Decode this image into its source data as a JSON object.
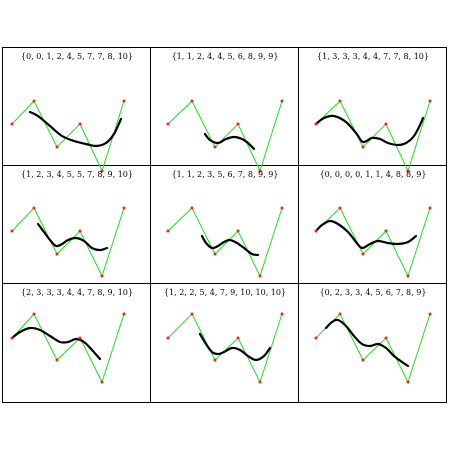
{
  "panels": [
    {
      "title": "{0, 0, 1, 2, 4, 5, 7, 7, 8, 10}",
      "control_points": [
        [
          8,
          76
        ],
        [
          30,
          53
        ],
        [
          53,
          99
        ],
        [
          76,
          76
        ],
        [
          98,
          123
        ],
        [
          120,
          53
        ]
      ],
      "curve": [
        [
          26,
          64
        ],
        [
          34,
          68
        ],
        [
          46,
          78
        ],
        [
          58,
          88
        ],
        [
          70,
          93
        ],
        [
          82,
          96
        ],
        [
          92,
          98
        ],
        [
          102,
          95
        ],
        [
          110,
          86
        ],
        [
          117,
          71
        ]
      ]
    },
    {
      "title": "{1, 1, 2, 4, 4, 5, 6, 8, 9, 9}",
      "control_points": [
        [
          16,
          76
        ],
        [
          40,
          53
        ],
        [
          63,
          99
        ],
        [
          86,
          76
        ],
        [
          108,
          123
        ],
        [
          130,
          53
        ]
      ],
      "curve": [
        [
          53,
          86
        ],
        [
          58,
          92
        ],
        [
          66,
          95
        ],
        [
          74,
          91
        ],
        [
          82,
          89
        ],
        [
          90,
          91
        ],
        [
          96,
          95
        ],
        [
          102,
          101
        ]
      ]
    },
    {
      "title": "{1, 3, 3, 3, 4, 4, 7, 7, 8, 10}",
      "control_points": [
        [
          16,
          76
        ],
        [
          40,
          53
        ],
        [
          63,
          99
        ],
        [
          86,
          76
        ],
        [
          108,
          123
        ],
        [
          130,
          53
        ]
      ],
      "curve": [
        [
          16,
          76
        ],
        [
          24,
          70
        ],
        [
          34,
          68
        ],
        [
          46,
          74
        ],
        [
          56,
          85
        ],
        [
          63,
          94
        ],
        [
          72,
          90
        ],
        [
          80,
          91
        ],
        [
          88,
          95
        ],
        [
          98,
          97
        ],
        [
          106,
          95
        ],
        [
          114,
          88
        ],
        [
          120,
          77
        ],
        [
          123,
          70
        ]
      ]
    },
    {
      "title": "{1, 2, 3, 4, 5, 5, 7, 8, 9, 10}",
      "control_points": [
        [
          8,
          65
        ],
        [
          30,
          42
        ],
        [
          53,
          88
        ],
        [
          76,
          65
        ],
        [
          98,
          110
        ],
        [
          120,
          42
        ]
      ],
      "curve": [
        [
          34,
          58
        ],
        [
          40,
          66
        ],
        [
          46,
          74
        ],
        [
          52,
          80
        ],
        [
          58,
          78
        ],
        [
          64,
          74
        ],
        [
          72,
          72
        ],
        [
          80,
          75
        ],
        [
          88,
          82
        ],
        [
          96,
          84
        ],
        [
          103,
          82
        ]
      ]
    },
    {
      "title": "{1, 1, 2, 3, 5, 6, 7, 8, 9, 9}",
      "control_points": [
        [
          16,
          65
        ],
        [
          40,
          42
        ],
        [
          63,
          88
        ],
        [
          86,
          65
        ],
        [
          108,
          110
        ],
        [
          130,
          42
        ]
      ],
      "curve": [
        [
          50,
          70
        ],
        [
          54,
          77
        ],
        [
          60,
          82
        ],
        [
          66,
          80
        ],
        [
          72,
          76
        ],
        [
          78,
          74
        ],
        [
          85,
          77
        ],
        [
          92,
          82
        ],
        [
          100,
          88
        ],
        [
          106,
          89
        ]
      ]
    },
    {
      "title": "{0, 0, 0, 0, 1, 1, 4, 8, 8, 9}",
      "control_points": [
        [
          16,
          65
        ],
        [
          40,
          42
        ],
        [
          63,
          88
        ],
        [
          86,
          65
        ],
        [
          108,
          110
        ],
        [
          130,
          42
        ]
      ],
      "curve": [
        [
          16,
          65
        ],
        [
          22,
          59
        ],
        [
          30,
          55
        ],
        [
          38,
          58
        ],
        [
          48,
          66
        ],
        [
          56,
          76
        ],
        [
          62,
          82
        ],
        [
          70,
          78
        ],
        [
          78,
          75
        ],
        [
          88,
          77
        ],
        [
          98,
          78
        ],
        [
          108,
          76
        ],
        [
          116,
          70
        ]
      ]
    },
    {
      "title": "{2, 3, 3, 3, 4, 4, 7, 8, 9, 10}",
      "control_points": [
        [
          8,
          54
        ],
        [
          30,
          30
        ],
        [
          53,
          76
        ],
        [
          76,
          54
        ],
        [
          98,
          98
        ],
        [
          120,
          30
        ]
      ],
      "curve": [
        [
          8,
          54
        ],
        [
          16,
          48
        ],
        [
          26,
          44
        ],
        [
          36,
          46
        ],
        [
          46,
          52
        ],
        [
          56,
          58
        ],
        [
          64,
          58
        ],
        [
          72,
          55
        ],
        [
          80,
          58
        ],
        [
          88,
          66
        ],
        [
          96,
          75
        ]
      ]
    },
    {
      "title": "{1, 2, 2, 5, 4, 7, 9, 10, 10, 10}",
      "control_points": [
        [
          16,
          54
        ],
        [
          40,
          30
        ],
        [
          63,
          76
        ],
        [
          86,
          54
        ],
        [
          108,
          98
        ],
        [
          130,
          30
        ]
      ],
      "curve": [
        [
          48,
          50
        ],
        [
          54,
          60
        ],
        [
          60,
          68
        ],
        [
          66,
          70
        ],
        [
          72,
          68
        ],
        [
          80,
          64
        ],
        [
          88,
          66
        ],
        [
          96,
          72
        ],
        [
          104,
          76
        ],
        [
          112,
          72
        ],
        [
          118,
          64
        ]
      ]
    },
    {
      "title": "{0, 2, 3, 3, 4, 5, 6, 7, 8, 9}",
      "control_points": [
        [
          16,
          54
        ],
        [
          40,
          30
        ],
        [
          63,
          76
        ],
        [
          86,
          54
        ],
        [
          108,
          98
        ],
        [
          130,
          30
        ]
      ],
      "curve": [
        [
          26,
          44
        ],
        [
          32,
          38
        ],
        [
          38,
          36
        ],
        [
          46,
          42
        ],
        [
          54,
          52
        ],
        [
          62,
          60
        ],
        [
          70,
          62
        ],
        [
          78,
          60
        ],
        [
          86,
          64
        ],
        [
          94,
          72
        ],
        [
          102,
          78
        ],
        [
          108,
          82
        ]
      ]
    }
  ],
  "colors": {
    "border": "#000000",
    "polygon": "#22dd22",
    "point": "#ee2222",
    "curve": "#000000"
  }
}
